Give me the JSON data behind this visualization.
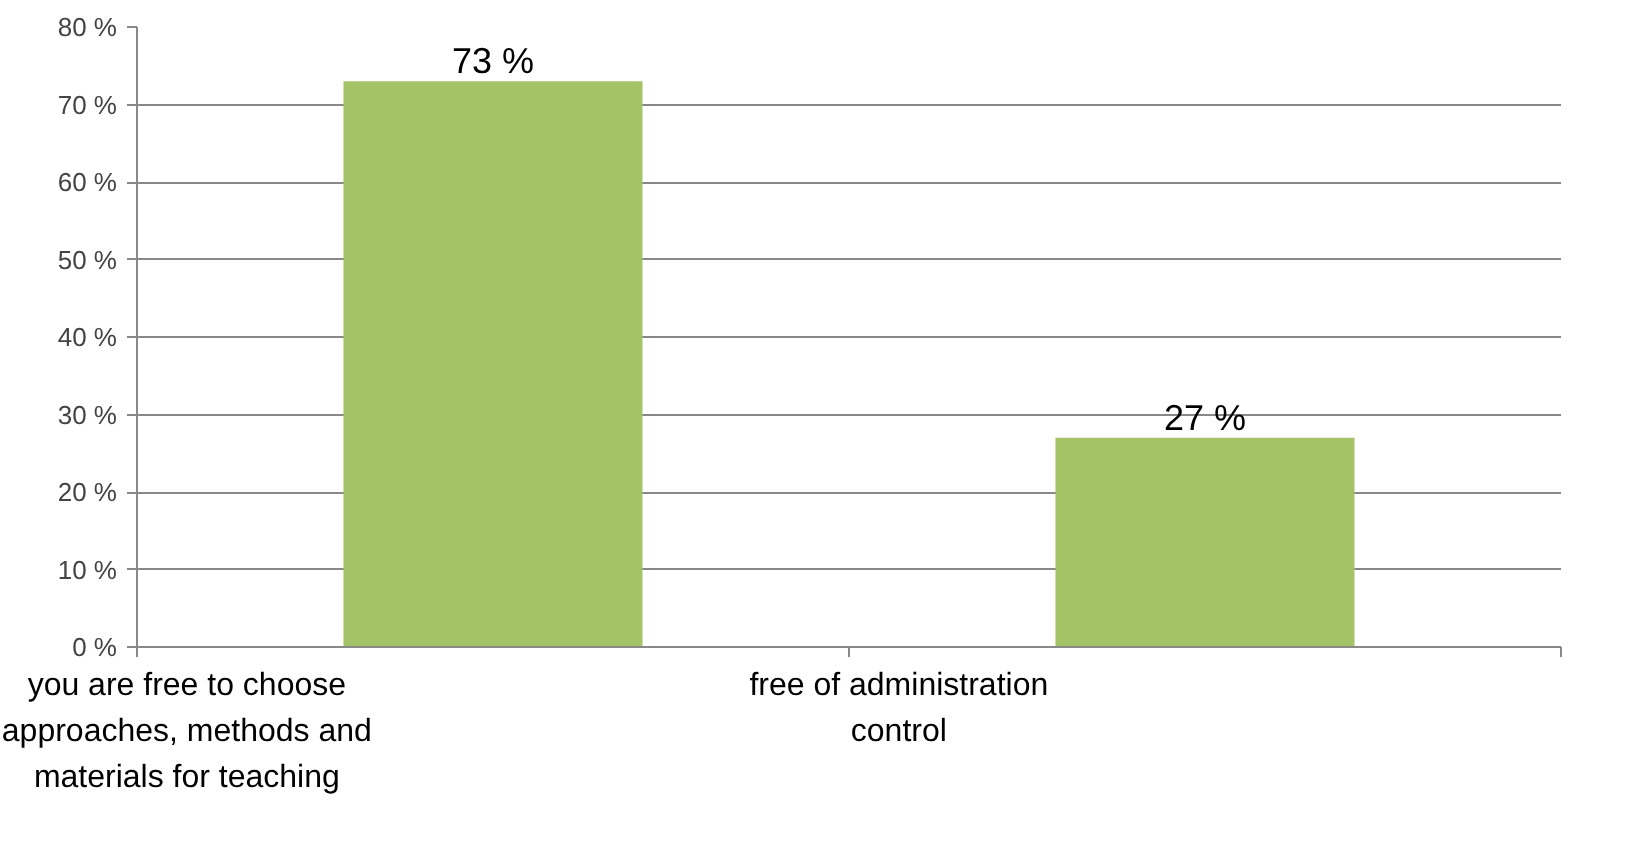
{
  "chart_data": {
    "type": "bar",
    "categories": [
      "you are free to choose\napproaches, methods and\nmaterials for teaching",
      "free of administration\ncontrol"
    ],
    "values": [
      73,
      27
    ],
    "value_labels": [
      "73 %",
      "27 %"
    ],
    "color": "#a4c366",
    "ylim": [
      0,
      80
    ],
    "yticks": [
      {
        "value": 0,
        "label": "0 %"
      },
      {
        "value": 10,
        "label": "10 %"
      },
      {
        "value": 20,
        "label": "20 %"
      },
      {
        "value": 30,
        "label": "30 %"
      },
      {
        "value": 40,
        "label": "40 %"
      },
      {
        "value": 50,
        "label": "50 %"
      },
      {
        "value": 60,
        "label": "60 %"
      },
      {
        "value": 70,
        "label": "70 %"
      },
      {
        "value": 80,
        "label": "80 %"
      }
    ],
    "grid": "y"
  }
}
